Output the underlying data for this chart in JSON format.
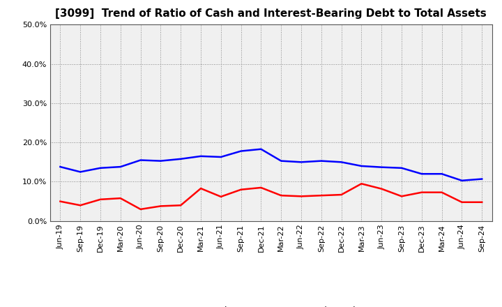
{
  "title": "[3099]  Trend of Ratio of Cash and Interest-Bearing Debt to Total Assets",
  "x_labels": [
    "Jun-19",
    "Sep-19",
    "Dec-19",
    "Mar-20",
    "Jun-20",
    "Sep-20",
    "Dec-20",
    "Mar-21",
    "Jun-21",
    "Sep-21",
    "Dec-21",
    "Mar-22",
    "Jun-22",
    "Sep-22",
    "Dec-22",
    "Mar-23",
    "Jun-23",
    "Sep-23",
    "Dec-23",
    "Mar-24",
    "Jun-24",
    "Sep-24"
  ],
  "cash": [
    0.05,
    0.04,
    0.055,
    0.058,
    0.03,
    0.038,
    0.04,
    0.083,
    0.062,
    0.08,
    0.085,
    0.065,
    0.063,
    0.065,
    0.067,
    0.095,
    0.082,
    0.063,
    0.073,
    0.073,
    0.048,
    0.048
  ],
  "ibd": [
    0.138,
    0.125,
    0.135,
    0.138,
    0.155,
    0.153,
    0.158,
    0.165,
    0.163,
    0.178,
    0.183,
    0.153,
    0.15,
    0.153,
    0.15,
    0.14,
    0.137,
    0.135,
    0.12,
    0.12,
    0.103,
    0.107
  ],
  "cash_color": "#ff0000",
  "ibd_color": "#0000ff",
  "ylim": [
    0.0,
    0.5
  ],
  "yticks": [
    0.0,
    0.1,
    0.2,
    0.3,
    0.4,
    0.5
  ],
  "background_color": "#ffffff",
  "plot_bg_color": "#f0f0f0",
  "grid_color": "#888888",
  "title_fontsize": 11,
  "tick_fontsize": 8,
  "legend_labels": [
    "Cash",
    "Interest-Bearing Debt"
  ]
}
